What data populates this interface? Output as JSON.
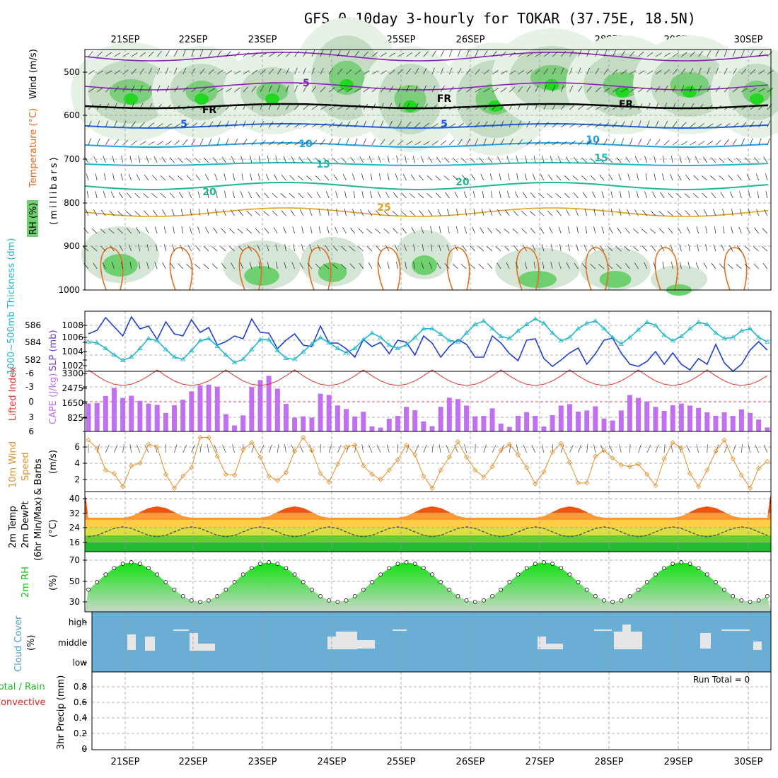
{
  "title": "GFS 0~10day 3-hourly for TOKAR (37.75E, 18.5N)",
  "dates": [
    "21SEP",
    "22SEP",
    "23SEP",
    "24SEP",
    "25SEP",
    "26SEP",
    "27SEP",
    "28SEP",
    "29SEP",
    "30SEP"
  ],
  "colors": {
    "rh_fill": "#6fd06f",
    "temp_label": "#e06a1f",
    "wind_label": "#000000",
    "slp": "#2040d0",
    "thickness": "#20b8c8",
    "lifted": "#e03030",
    "cape": "#c070f0",
    "wind10": "#e0902a",
    "rh2m": "#10c810",
    "cloud_bg": "#6aaed6",
    "cloud_fill": "#e6e6e6",
    "precip_total": "#20c020",
    "precip_conv": "#e02020"
  },
  "panels": {
    "upper": {
      "label_rh": "RH (%)",
      "label_temp": "Temperature (°C)",
      "label_wind": "Wind (m/s)",
      "label_units": "(millibars)",
      "yticks": [
        "500",
        "600",
        "700",
        "800",
        "900",
        "1000"
      ],
      "isotherm_labels": [
        "-5",
        "FR",
        "FR",
        "FR",
        "5",
        "5",
        "10",
        "10",
        "15",
        "15",
        "20",
        "20",
        "25"
      ]
    },
    "slp": {
      "label_thick": "1000~500mb Thickness (dm)",
      "label_slp": "SLP (mb)",
      "yticks_left": [
        "586",
        "584",
        "582"
      ],
      "yticks_right": [
        "1008",
        "1006",
        "1004",
        "1002"
      ]
    },
    "cape": {
      "label_li": "Lifted Index",
      "label_cape": "CAPE (J/kg)",
      "yticks_left": [
        "-6",
        "-3",
        "0",
        "3",
        "6"
      ],
      "yticks_right": [
        "3300",
        "2475",
        "1650",
        "825"
      ]
    },
    "wind10": {
      "label": "10m Wind Speed & Barbs",
      "units": "(m/s)",
      "yticks": [
        "6",
        "4",
        "2"
      ]
    },
    "temp2m": {
      "label": "2m Temp 2m DewPt (6hr Min/Max)",
      "units": "(°C)",
      "yticks": [
        "40",
        "32",
        "24",
        "16"
      ]
    },
    "rh2m": {
      "label": "2m RH",
      "units": "(%)",
      "yticks": [
        "70",
        "50",
        "30"
      ]
    },
    "cloud": {
      "label": "Cloud Cover",
      "units": "(%)",
      "yticks": [
        "high",
        "middle",
        "low"
      ]
    },
    "precip": {
      "label_total": "Total / Rain",
      "label_conv": "Convective",
      "label_units": "3hr Precip (mm)",
      "yticks": [
        "0.8",
        "0.6",
        "0.4",
        "0.2",
        "0"
      ],
      "run_total": "Run Total = 0"
    }
  },
  "chart_data": [
    {
      "type": "line",
      "title": "1000~500mb Thickness (dm) / SLP (mb)",
      "series": [
        {
          "name": "SLP (mb)",
          "axis": "right",
          "ylim": [
            1001,
            1009.5
          ],
          "values": [
            1006.3,
            1006.8,
            1008.6,
            1007.3,
            1006.0,
            1008.7,
            1007.0,
            1007.4,
            1005.5,
            1008.0,
            1006.3,
            1006.0,
            1008.3,
            1006.5,
            1007.2,
            1004.7,
            1005.2,
            1006.0,
            1005.6,
            1008.4,
            1006.5,
            1006.4,
            1004.2,
            1005.4,
            1006.3,
            1004.7,
            1004.5,
            1007.4,
            1005.0,
            1005.0,
            1004.2,
            1003.0,
            1005.5,
            1004.5,
            1005.1,
            1003.5,
            1005.4,
            1005.1,
            1003.3,
            1006.0,
            1005.0,
            1003.0,
            1004.5,
            1005.5,
            1004.8,
            1003.0,
            1003.0,
            1006.0,
            1005.0,
            1003.5,
            1002.5,
            1005.4,
            1005.6,
            1002.8,
            1001.7,
            1002.6,
            1003.6,
            1004.3,
            1002.0,
            1003.5,
            1005.4,
            1005.7,
            1003.6,
            1002.0,
            1001.7,
            1002.4,
            1003.8,
            1002.0,
            1003.6,
            1002.0,
            1001.2,
            1002.8,
            1002.0,
            1004.8,
            1002.2,
            1001.0,
            1002.0,
            1004.0,
            1005.2,
            1004.0
          ]
        },
        {
          "name": "1000~500mb Thickness (dm)",
          "axis": "left",
          "ylim": [
            581.5,
            587
          ],
          "values": [
            584.2,
            584.1,
            583.6,
            583.0,
            582.5,
            582.8,
            583.6,
            584.5,
            584.3,
            583.5,
            582.8,
            582.6,
            583.4,
            584.3,
            584.5,
            583.8,
            583.0,
            582.3,
            582.6,
            583.5,
            584.4,
            584.4,
            583.4,
            582.7,
            582.6,
            583.3,
            584.0,
            584.6,
            584.1,
            583.6,
            583.2,
            583.6,
            584.4,
            585.0,
            584.6,
            583.9,
            583.6,
            583.9,
            584.6,
            585.4,
            585.4,
            584.9,
            584.3,
            584.2,
            585.0,
            585.8,
            586.1,
            585.4,
            584.7,
            584.5,
            585.2,
            585.8,
            586.3,
            585.9,
            585.0,
            584.3,
            584.6,
            585.4,
            585.9,
            586.1,
            585.4,
            584.6,
            584.0,
            584.6,
            585.3,
            586.0,
            585.7,
            584.8,
            584.3,
            584.7,
            585.4,
            586.0,
            585.8,
            585.0,
            584.5,
            584.6,
            585.2,
            585.4,
            584.6,
            584.2
          ]
        }
      ]
    },
    {
      "type": "bar",
      "title": "CAPE (J/kg)",
      "ylim": [
        0,
        3300
      ],
      "values": [
        1530,
        1560,
        1950,
        2390,
        1840,
        1960,
        1680,
        1530,
        1460,
        1020,
        1440,
        1740,
        2200,
        2530,
        2570,
        2460,
        950,
        330,
        880,
        2440,
        2820,
        3050,
        2350,
        1510,
        760,
        830,
        760,
        2070,
        2000,
        1430,
        1230,
        820,
        1080,
        280,
        210,
        700,
        850,
        1350,
        1160,
        550,
        290,
        1350,
        1850,
        1780,
        1420,
        830,
        850,
        1270,
        430,
        250,
        860,
        1060,
        850,
        270,
        890,
        1420,
        1500,
        1090,
        1150,
        1380,
        710,
        600,
        1150,
        2000,
        1840,
        1650,
        1350,
        1130,
        1440,
        1530,
        1420,
        1290,
        1050,
        860,
        1050,
        850,
        1210,
        1020,
        650,
        220
      ]
    },
    {
      "type": "line",
      "title": "10m Wind Speed (m/s)",
      "ylim": [
        0.5,
        7.5
      ],
      "values": [
        6.5,
        5.5,
        3.0,
        2.6,
        1.1,
        3.5,
        3.8,
        6.0,
        5.7,
        2.5,
        0.9,
        2.3,
        3.3,
        6.8,
        6.8,
        4.6,
        2.5,
        2.4,
        5.4,
        6.2,
        4.5,
        2.3,
        1.8,
        2.7,
        5.2,
        6.8,
        5.3,
        2.6,
        1.6,
        3.7,
        5.7,
        5.9,
        3.5,
        2.5,
        1.9,
        3.0,
        4.2,
        5.9,
        4.8,
        2.3,
        0.9,
        3.0,
        4.5,
        6.3,
        4.5,
        3.0,
        2.2,
        3.4,
        5.3,
        6.0,
        4.8,
        3.3,
        1.4,
        2.8,
        5.1,
        6.1,
        3.9,
        1.5,
        1.5,
        4.6,
        5.3,
        4.4,
        3.6,
        3.4,
        3.7,
        2.5,
        1.2,
        4.3,
        6.2,
        5.6,
        2.6,
        1.1,
        3.0,
        5.2,
        6.5,
        4.3,
        2.4,
        0.9,
        3.2,
        4.0
      ]
    }
  ]
}
